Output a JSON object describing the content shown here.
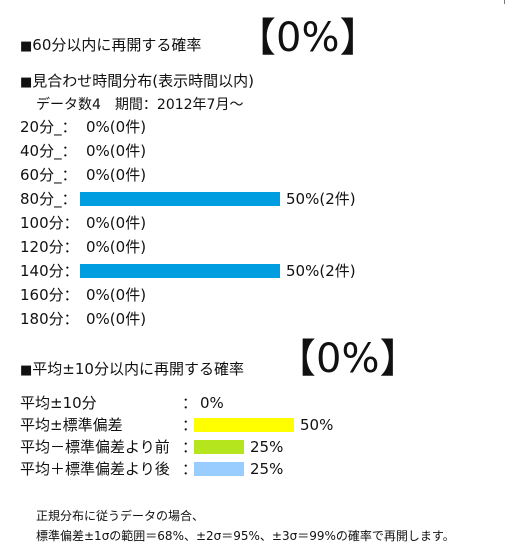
{
  "section1": {
    "bullet": "■",
    "heading": "60分以内に再開する確率",
    "result": "【0%】"
  },
  "section2": {
    "bullet": "■",
    "heading": "見合わせ時間分布(表示時間以内)",
    "meta": "データ数4　期間：2012年7月～",
    "rows": [
      {
        "label": "20分_：",
        "value": "0%(0件)",
        "percent": 0
      },
      {
        "label": "40分_：",
        "value": "0%(0件)",
        "percent": 0
      },
      {
        "label": "60分_：",
        "value": "0%(0件)",
        "percent": 0
      },
      {
        "label": "80分_：",
        "value": "50%(2件)",
        "percent": 50
      },
      {
        "label": "100分：",
        "value": "0%(0件)",
        "percent": 0
      },
      {
        "label": "120分：",
        "value": "0%(0件)",
        "percent": 0
      },
      {
        "label": "140分：",
        "value": "50%(2件)",
        "percent": 50
      },
      {
        "label": "160分：",
        "value": "0%(0件)",
        "percent": 0
      },
      {
        "label": "180分：",
        "value": "0%(0件)",
        "percent": 0
      }
    ],
    "bar_color": "#009ee0"
  },
  "section3": {
    "bullet": "■",
    "heading": "平均±10分以内に再開する確率",
    "result": "【0%】",
    "rows": [
      {
        "label": "平均±10分",
        "sep": "：",
        "value": "0%",
        "percent": 0,
        "color": ""
      },
      {
        "label": "平均±標準偏差",
        "sep": "：",
        "value": "50%",
        "percent": 50,
        "color": "#ffff00"
      },
      {
        "label": "平均－標準偏差より前",
        "sep": "：",
        "value": "25%",
        "percent": 25,
        "color": "#b5e61d"
      },
      {
        "label": "平均＋標準偏差より後",
        "sep": "：",
        "value": "25%",
        "percent": 25,
        "color": "#99ccff"
      }
    ]
  },
  "note": {
    "line1": "正規分布に従うデータの場合、",
    "line2": "標準偏差±1σの範囲＝68%、±2σ＝95%、±3σ＝99%の確率で再開します。"
  }
}
